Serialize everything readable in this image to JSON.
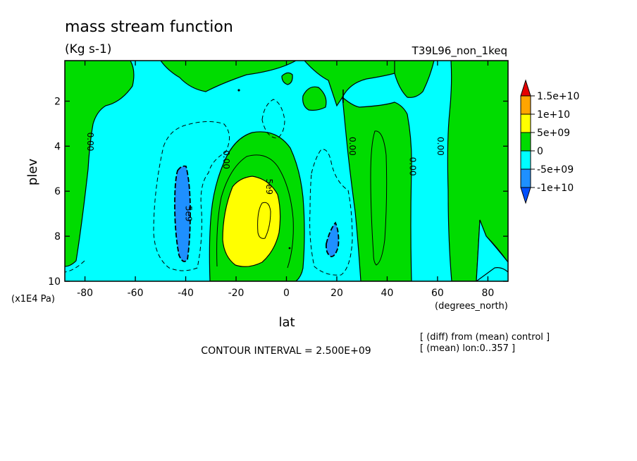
{
  "chart_data": {
    "type": "heatmap",
    "title": "mass stream function",
    "units": "(Kg s-1)",
    "experiment": "T39L96_non_1keq",
    "xlabel": "lat",
    "xunits": "(degrees_north)",
    "ylabel": "plev",
    "yunits": "(x1E4 Pa)",
    "xlim": [
      -88,
      88
    ],
    "ylim": [
      10,
      0.2
    ],
    "x_ticks": [
      -80,
      -60,
      -40,
      -20,
      0,
      20,
      40,
      60,
      80
    ],
    "y_ticks": [
      2,
      4,
      6,
      8,
      10
    ],
    "contour_interval": "CONTOUR INTERVAL = 2.500E+09",
    "notes": [
      "[ (diff) from (mean) control ]",
      "[ (mean) lon:0..357 ]"
    ],
    "colorbar": {
      "labels": [
        "1.5e+10",
        "1e+10",
        "5e+09",
        "0",
        "-5e+09",
        "-1e+10"
      ],
      "colors": [
        "#e60000",
        "#ffa500",
        "#ffff00",
        "#00dc00",
        "#00ffff",
        "#1e90ff",
        "#0050ff"
      ]
    },
    "contour_labels": [
      {
        "text": "0.00",
        "lat": -78,
        "plev": 3.8
      },
      {
        "text": "0.00",
        "lat": -24,
        "plev": 4.6
      },
      {
        "text": "0.00",
        "lat": 26,
        "plev": 4.0
      },
      {
        "text": "0.00",
        "lat": 50,
        "plev": 4.9
      },
      {
        "text": "0.00",
        "lat": 61,
        "plev": 4.0
      },
      {
        "text": "5e9",
        "lat": -39,
        "plev": 7.0
      },
      {
        "text": "5e9",
        "lat": -7,
        "plev": 5.8
      }
    ]
  }
}
